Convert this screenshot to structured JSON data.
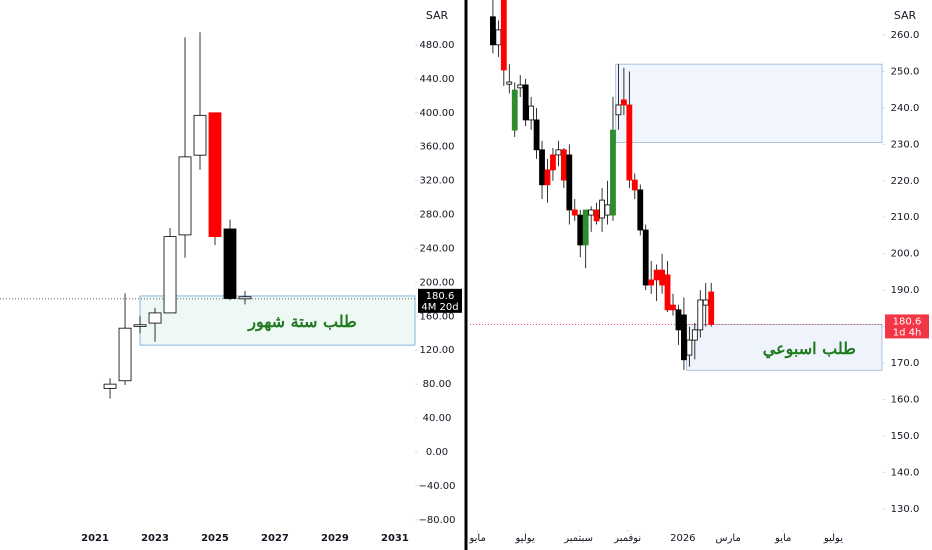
{
  "chart_data": [
    {
      "type": "candlestick",
      "unit": "SAR",
      "x": [
        2021.5,
        2022,
        2022.5,
        2023,
        2023.5,
        2024,
        2024.5,
        2025,
        2025.5,
        2026
      ],
      "open": [
        75,
        84,
        148,
        152,
        164,
        256,
        350,
        400,
        263,
        183
      ],
      "high": [
        87,
        187,
        160,
        170,
        264,
        489,
        495,
        400,
        274,
        190
      ],
      "low": [
        63,
        79,
        140,
        130,
        164,
        229,
        333,
        244,
        179,
        174
      ],
      "close": [
        80,
        146,
        150,
        164,
        254,
        348,
        397,
        254,
        181,
        180.6
      ],
      "colors": [
        "#ffffff",
        "#ffffff",
        "#ffffff",
        "#ffffff",
        "#ffffff",
        "#ffffff",
        "#ffffff",
        "#ff0000",
        "#000000",
        "#ffffff"
      ],
      "xlim": [
        2017.83,
        2031.67
      ],
      "xticks": [
        2021,
        2023,
        2025,
        2027,
        2029,
        2031
      ],
      "ylim": [
        -92,
        533
      ],
      "yticks": [
        {
          "value": -80,
          "label": "−80.00"
        },
        {
          "value": -40,
          "label": "−40.00"
        },
        {
          "value": 0,
          "label": "0.00"
        },
        {
          "value": 40,
          "label": "40.00"
        },
        {
          "value": 80,
          "label": "80.00"
        },
        {
          "value": 120,
          "label": "120.00"
        },
        {
          "value": 160,
          "label": "160.00"
        },
        {
          "value": 200,
          "label": "200.00"
        },
        {
          "value": 240,
          "label": "240.00"
        },
        {
          "value": 280,
          "label": "280.00"
        },
        {
          "value": 320,
          "label": "320.00"
        },
        {
          "value": 360,
          "label": "360.00"
        },
        {
          "value": 400,
          "label": "400.00"
        },
        {
          "value": 440,
          "label": "440.00"
        },
        {
          "value": 480,
          "label": "480.00"
        }
      ],
      "zones": [
        {
          "label": "طلب ستة شهور",
          "low": 126,
          "high": 184,
          "x_start": 2022.5,
          "fill": "#eef8f5",
          "border": "#6aa8d8"
        }
      ],
      "last_price": 180.6,
      "countdown": "4M 20d",
      "price_box_color": "#000000",
      "price_line_color": "#555555"
    },
    {
      "type": "candlestick",
      "unit": "SAR",
      "x": [
        0,
        1,
        2,
        3,
        4,
        5,
        6,
        7,
        8,
        9,
        10,
        11,
        12,
        13,
        14,
        15,
        16,
        17,
        18,
        19,
        20,
        21,
        22,
        23,
        24,
        25,
        26,
        27,
        28,
        29,
        30,
        31,
        32,
        33,
        34,
        35,
        36,
        37,
        38,
        39,
        40
      ],
      "open": [
        265,
        257.3,
        269.6,
        246.5,
        233.9,
        245.5,
        246.3,
        236.7,
        236.7,
        228.5,
        223,
        227.1,
        227.1,
        228.5,
        227.1,
        212,
        210.6,
        202.4,
        210.6,
        212,
        209.8,
        210.6,
        210.6,
        238.1,
        242.2,
        240.8,
        220.2,
        217.5,
        206.5,
        192.8,
        195.5,
        195.5,
        194.2,
        185.9,
        184.6,
        183.2,
        172.2,
        176.3,
        179.1,
        185.9,
        189.5
      ],
      "high": [
        269.6,
        264,
        269.6,
        252,
        247,
        249,
        248,
        243,
        240,
        231,
        226,
        229,
        231,
        229,
        230,
        215,
        212,
        212,
        213,
        214,
        218,
        220,
        243,
        252,
        251,
        250,
        222,
        219,
        208,
        198,
        197,
        200,
        198,
        189,
        186,
        188,
        180,
        181,
        190,
        192,
        192
      ],
      "low": [
        255,
        254,
        246,
        244,
        232,
        243,
        235,
        234,
        226,
        215,
        214,
        220,
        224,
        218,
        208,
        209,
        199,
        196,
        206,
        208,
        206,
        208,
        209,
        234,
        238,
        218,
        215,
        205,
        190,
        189,
        187,
        189,
        184,
        183,
        175,
        168.1,
        169,
        171,
        177,
        180,
        180
      ],
      "close": [
        257.3,
        261.4,
        250.4,
        247.1,
        244.9,
        246.3,
        236.7,
        240.5,
        228.5,
        218.9,
        218.9,
        223,
        228.5,
        220.2,
        212,
        210.6,
        202.4,
        212,
        212,
        209,
        214.7,
        213.4,
        233.9,
        240.8,
        240.8,
        220.2,
        217.5,
        206.5,
        191.4,
        191.4,
        192.8,
        191.4,
        184.6,
        184.6,
        179.1,
        170.9,
        176.3,
        179.1,
        187.3,
        187.3,
        180.6
      ],
      "colors": [
        "#000000",
        "#ffffff",
        "#ff0000",
        "#ffffff",
        "#2e8b2e",
        "#ffffff",
        "#000000",
        "#ffffff",
        "#000000",
        "#000000",
        "#ff0000",
        "#ff0000",
        "#ffffff",
        "#ff0000",
        "#000000",
        "#ff0000",
        "#000000",
        "#2e8b2e",
        "#ffffff",
        "#ff0000",
        "#ffffff",
        "#ffffff",
        "#2e8b2e",
        "#ffffff",
        "#ff0000",
        "#ff0000",
        "#ff0000",
        "#000000",
        "#000000",
        "#ff0000",
        "#ff0000",
        "#ff0000",
        "#ff0000",
        "#ff0000",
        "#000000",
        "#000000",
        "#ffffff",
        "#ffffff",
        "#ffffff",
        "#ffffff",
        "#ff0000"
      ],
      "xlim": [
        -4.2,
        71.3
      ],
      "xticks": [
        {
          "value": -2.8,
          "label": "مايو"
        },
        {
          "value": 5.9,
          "label": "يوليو"
        },
        {
          "value": 15.7,
          "label": "سبتمبر"
        },
        {
          "value": 24.7,
          "label": "نوفمبر"
        },
        {
          "value": 34.8,
          "label": "2026"
        },
        {
          "value": 43.1,
          "label": "مارس"
        },
        {
          "value": 53.2,
          "label": "مايو"
        },
        {
          "value": 62.4,
          "label": "يوليو"
        }
      ],
      "ylim": [
        124.2,
        269.6
      ],
      "yticks": [
        {
          "value": 130,
          "label": "130.0"
        },
        {
          "value": 140,
          "label": "140.0"
        },
        {
          "value": 150,
          "label": "150.0"
        },
        {
          "value": 160,
          "label": "160.0"
        },
        {
          "value": 170,
          "label": "170.0"
        },
        {
          "value": 180,
          "label": "180.0"
        },
        {
          "value": 190,
          "label": "190.0"
        },
        {
          "value": 200,
          "label": "200.0"
        },
        {
          "value": 210,
          "label": "210.0"
        },
        {
          "value": 220,
          "label": "220.0"
        },
        {
          "value": 230,
          "label": "230.0"
        },
        {
          "value": 240,
          "label": "240.0"
        },
        {
          "value": 250,
          "label": "250.0"
        },
        {
          "value": 260,
          "label": "260.0"
        }
      ],
      "zones": [
        {
          "low": 230.5,
          "high": 252,
          "x_start": 22.5,
          "fill": "#f1f5fd",
          "border": "#9ab6d8"
        },
        {
          "label": "طلب اسبوعي",
          "low": 168,
          "high": 180.6,
          "x_start": 35.5,
          "fill": "#eef3fc",
          "border": "#9ab6d8"
        }
      ],
      "last_price": 180.6,
      "countdown": "1d 4h",
      "price_box_color": "#f23645",
      "price_line_color": "#f23645"
    }
  ]
}
